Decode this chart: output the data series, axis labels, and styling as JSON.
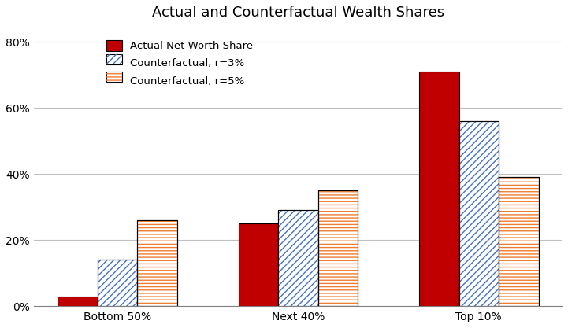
{
  "title": "Actual and Counterfactual Wealth Shares",
  "categories": [
    "Bottom 50%",
    "Next 40%",
    "Top 10%"
  ],
  "series": {
    "actual": [
      0.03,
      0.25,
      0.71
    ],
    "r3": [
      0.14,
      0.29,
      0.56
    ],
    "r5": [
      0.26,
      0.35,
      0.39
    ]
  },
  "colors": {
    "actual": "#C00000",
    "r3_face": "#FFFFFF",
    "r3_hatch_color": "#4472C4",
    "r5_face": "#FFFFFF",
    "r5_hatch_color": "#ED7D31"
  },
  "legend_labels": [
    "Actual Net Worth Share",
    "Counterfactual, r=3%",
    "Counterfactual, r=5%"
  ],
  "ylim": [
    0,
    0.85
  ],
  "yticks": [
    0.0,
    0.2,
    0.4,
    0.6,
    0.8
  ],
  "ytick_labels": [
    "0%",
    "20%",
    "40%",
    "60%",
    "80%"
  ],
  "bar_width": 0.22,
  "figsize": [
    7.21,
    4.17
  ],
  "dpi": 100,
  "background_color": "#FFFFFF",
  "grid_color": "#C0C0C0",
  "title_fontsize": 13
}
